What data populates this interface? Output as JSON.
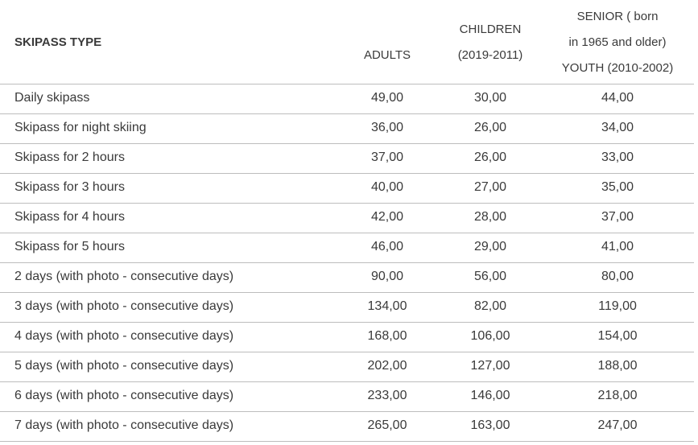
{
  "table": {
    "header": [
      [
        "SKIPASS TYPE"
      ],
      [
        "ADULTS"
      ],
      [
        "CHILDREN",
        "(2019-2011)"
      ],
      [
        "SENIOR ( born",
        "in 1965 and older)",
        "YOUTH (2010-2002)"
      ]
    ],
    "rows": [
      [
        "Daily skipass",
        "49,00",
        "30,00",
        "44,00"
      ],
      [
        "Skipass for night skiing",
        "36,00",
        "26,00",
        "34,00"
      ],
      [
        "Skipass for 2 hours",
        "37,00",
        "26,00",
        "33,00"
      ],
      [
        "Skipass for 3 hours",
        "40,00",
        "27,00",
        "35,00"
      ],
      [
        "Skipass for 4 hours",
        "42,00",
        "28,00",
        "37,00"
      ],
      [
        "Skipass for 5 hours",
        "46,00",
        "29,00",
        "41,00"
      ],
      [
        "2 days (with photo - consecutive days)",
        "90,00",
        "56,00",
        "80,00"
      ],
      [
        "3 days (with photo - consecutive days)",
        "134,00",
        "82,00",
        "119,00"
      ],
      [
        "4 days (with photo - consecutive days)",
        "168,00",
        "106,00",
        "154,00"
      ],
      [
        "5 days (with photo - consecutive days)",
        "202,00",
        "127,00",
        "188,00"
      ],
      [
        "6 days (with photo - consecutive days)",
        "233,00",
        "146,00",
        "218,00"
      ],
      [
        "7 days (with photo - consecutive days)",
        "265,00",
        "163,00",
        "247,00"
      ]
    ]
  }
}
